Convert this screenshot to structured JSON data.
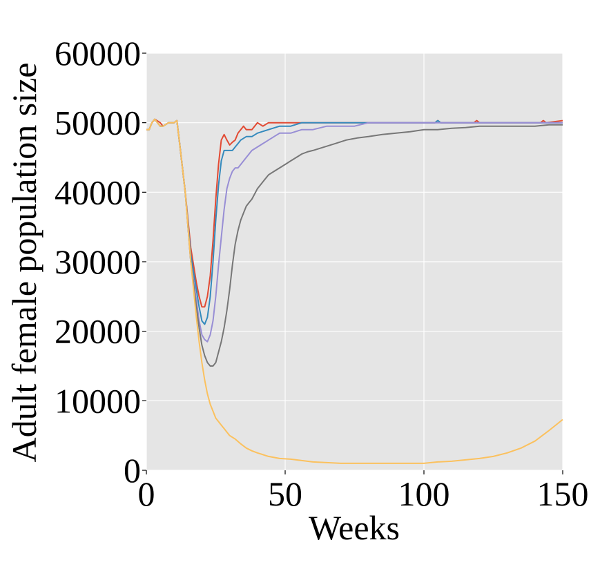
{
  "chart_data": {
    "type": "line",
    "xlabel": "Weeks",
    "ylabel": "Adult female population size",
    "xlim": [
      0,
      150
    ],
    "ylim": [
      0,
      60000
    ],
    "xticks": [
      0,
      50,
      100,
      150
    ],
    "xtick_labels": [
      "0",
      "50",
      "100",
      "150"
    ],
    "yticks": [
      0,
      10000,
      20000,
      30000,
      40000,
      50000,
      60000
    ],
    "ytick_labels": [
      "0",
      "10000",
      "20000",
      "30000",
      "40000",
      "50000",
      "60000"
    ],
    "grid": true,
    "background": "#e5e5e5",
    "series": [
      {
        "color": "#e24a33",
        "x": [
          0,
          1,
          2,
          3,
          5,
          6,
          8,
          10,
          11,
          12,
          14,
          16,
          18,
          19,
          20,
          21,
          22,
          23,
          24,
          25,
          26,
          27,
          28,
          29,
          30,
          31,
          32,
          33,
          34,
          35,
          36,
          37,
          38,
          40,
          42,
          44,
          46,
          50,
          55,
          60,
          70,
          80,
          90,
          100,
          104,
          105,
          106,
          110,
          118,
          119,
          120,
          130,
          142,
          143,
          144,
          150
        ],
        "y": [
          49000,
          49000,
          50000,
          50500,
          50000,
          49500,
          50000,
          50000,
          50300,
          47000,
          40000,
          32000,
          27000,
          25000,
          23500,
          23500,
          25000,
          28000,
          33000,
          39000,
          44000,
          47500,
          48300,
          47500,
          46800,
          47200,
          47500,
          48500,
          49000,
          49500,
          49000,
          49000,
          49000,
          50000,
          49500,
          50000,
          50000,
          50000,
          50000,
          50000,
          50000,
          50000,
          50000,
          50000,
          50000,
          50300,
          50000,
          50000,
          50000,
          50300,
          50000,
          50000,
          50000,
          50300,
          50000,
          50300
        ]
      },
      {
        "color": "#348abd",
        "x": [
          0,
          1,
          2,
          3,
          5,
          6,
          8,
          10,
          11,
          12,
          14,
          16,
          18,
          19,
          20,
          21,
          22,
          23,
          24,
          25,
          26,
          27,
          28,
          29,
          30,
          31,
          32,
          33,
          34,
          36,
          38,
          40,
          44,
          48,
          52,
          56,
          60,
          70,
          80,
          90,
          100,
          104,
          105,
          106,
          110,
          120,
          130,
          140,
          150
        ],
        "y": [
          49000,
          49000,
          50000,
          50500,
          49500,
          49500,
          50000,
          50000,
          50300,
          47000,
          40000,
          31000,
          26000,
          23500,
          21500,
          21000,
          22000,
          25000,
          30000,
          36000,
          41000,
          44500,
          46000,
          46000,
          46000,
          46000,
          46500,
          47000,
          47500,
          48000,
          48000,
          48500,
          49000,
          49500,
          49500,
          50000,
          50000,
          50000,
          50000,
          50000,
          50000,
          50000,
          50300,
          50000,
          50000,
          50000,
          50000,
          50000,
          50000
        ]
      },
      {
        "color": "#988ed5",
        "x": [
          0,
          1,
          2,
          3,
          5,
          6,
          8,
          10,
          11,
          12,
          14,
          16,
          18,
          19,
          20,
          21,
          22,
          23,
          24,
          25,
          26,
          27,
          28,
          29,
          30,
          31,
          32,
          33,
          34,
          36,
          38,
          40,
          42,
          44,
          46,
          48,
          52,
          56,
          60,
          65,
          70,
          75,
          80,
          90,
          100,
          110,
          120,
          130,
          140,
          150
        ],
        "y": [
          49000,
          49000,
          50000,
          50500,
          49500,
          49500,
          50000,
          50000,
          50300,
          47000,
          40000,
          30000,
          24500,
          21500,
          19500,
          18800,
          18500,
          19500,
          21500,
          25000,
          29500,
          33500,
          37500,
          40500,
          42000,
          43000,
          43500,
          43500,
          44000,
          45000,
          46000,
          46500,
          47000,
          47500,
          48000,
          48500,
          48500,
          49000,
          49000,
          49500,
          49500,
          49500,
          50000,
          50000,
          50000,
          50000,
          50000,
          50000,
          50000,
          50000
        ]
      },
      {
        "color": "#777777",
        "x": [
          0,
          1,
          2,
          3,
          5,
          6,
          8,
          10,
          11,
          12,
          14,
          16,
          18,
          19,
          20,
          21,
          22,
          23,
          24,
          25,
          26,
          27,
          28,
          29,
          30,
          31,
          32,
          33,
          34,
          35,
          36,
          37,
          38,
          40,
          42,
          44,
          46,
          48,
          50,
          52,
          54,
          56,
          58,
          60,
          64,
          68,
          72,
          76,
          80,
          85,
          90,
          95,
          100,
          105,
          110,
          115,
          120,
          130,
          140,
          145,
          150
        ],
        "y": [
          49000,
          49000,
          50000,
          50500,
          49500,
          49500,
          50000,
          50000,
          50300,
          47000,
          40000,
          30000,
          23500,
          20500,
          18000,
          16500,
          15500,
          15000,
          15000,
          15500,
          17000,
          18500,
          20500,
          23000,
          26000,
          29500,
          32500,
          34500,
          36000,
          37000,
          38000,
          38500,
          39000,
          40500,
          41500,
          42500,
          43000,
          43500,
          44000,
          44500,
          45000,
          45500,
          45800,
          46000,
          46500,
          47000,
          47500,
          47800,
          48000,
          48300,
          48500,
          48700,
          49000,
          49000,
          49200,
          49300,
          49500,
          49500,
          49500,
          49700,
          49700
        ]
      },
      {
        "color": "#fbc15e",
        "x": [
          0,
          1,
          2,
          3,
          5,
          6,
          8,
          10,
          11,
          12,
          14,
          16,
          18,
          19,
          20,
          21,
          22,
          23,
          24,
          25,
          26,
          27,
          28,
          30,
          32,
          34,
          36,
          38,
          40,
          44,
          48,
          52,
          56,
          60,
          65,
          70,
          80,
          90,
          100,
          105,
          110,
          115,
          120,
          125,
          130,
          135,
          140,
          145,
          150
        ],
        "y": [
          49000,
          49000,
          50000,
          50500,
          49500,
          49500,
          50000,
          50000,
          50300,
          47000,
          40000,
          30000,
          22000,
          18500,
          15500,
          13000,
          11000,
          9500,
          8500,
          7500,
          7000,
          6500,
          6000,
          5000,
          4500,
          3800,
          3200,
          2800,
          2500,
          2000,
          1700,
          1600,
          1400,
          1200,
          1100,
          1000,
          1000,
          1000,
          1000,
          1200,
          1300,
          1500,
          1700,
          2000,
          2500,
          3200,
          4200,
          5700,
          7300
        ]
      }
    ]
  }
}
